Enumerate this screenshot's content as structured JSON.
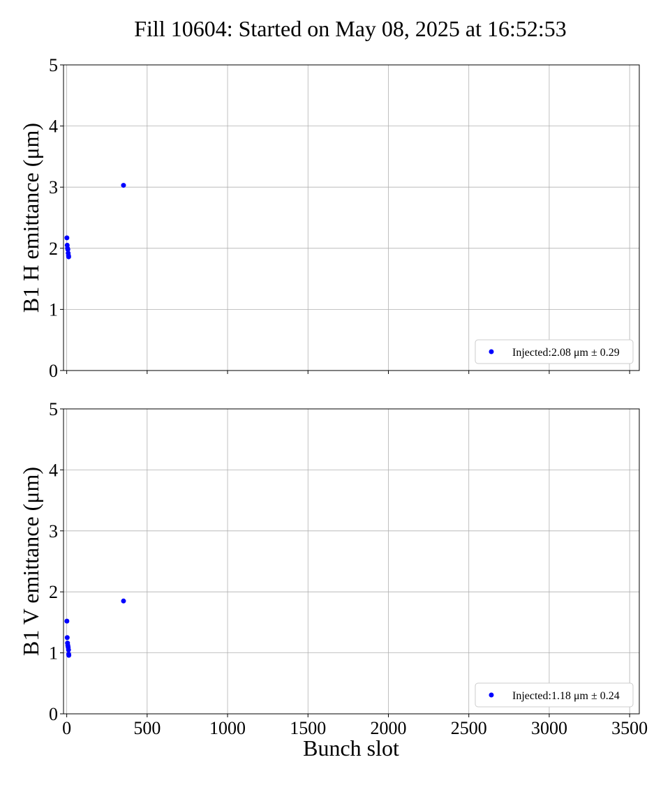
{
  "chart_data": {
    "type": "scatter",
    "title": "Fill 10604: Started on May 08, 2025 at 16:52:53",
    "xlabel": "Bunch slot",
    "xlim": [
      -20,
      3560
    ],
    "xticks": [
      0,
      500,
      1000,
      1500,
      2000,
      2500,
      3000,
      3500
    ],
    "xtick_labels": [
      "0",
      "500",
      "1000",
      "1500",
      "2000",
      "2500",
      "3000",
      "3500"
    ],
    "grid": true,
    "color": "#0000ff",
    "panels": [
      {
        "ylabel": "B1 H emittance (μm)",
        "ylim": [
          0,
          5
        ],
        "yticks": [
          "0",
          "1",
          "2",
          "3",
          "4",
          "5"
        ],
        "legend": {
          "label": "Injected:2.08 μm ± 0.29",
          "placement": "bottom-right"
        },
        "x": [
          1,
          3,
          5,
          7,
          9,
          11,
          12,
          353
        ],
        "y": [
          2.17,
          2.05,
          2.0,
          1.98,
          1.92,
          1.88,
          1.86,
          3.03
        ]
      },
      {
        "ylabel": "B1 V emittance (μm)",
        "ylim": [
          0,
          5
        ],
        "yticks": [
          "0",
          "1",
          "2",
          "3",
          "4",
          "5"
        ],
        "legend": {
          "label": "Injected:1.18 μm ± 0.24",
          "placement": "bottom-right"
        },
        "x": [
          1,
          3,
          5,
          7,
          9,
          11,
          12,
          13,
          353
        ],
        "y": [
          1.52,
          1.25,
          1.16,
          1.12,
          1.09,
          1.05,
          0.98,
          0.96,
          1.85
        ]
      }
    ]
  }
}
